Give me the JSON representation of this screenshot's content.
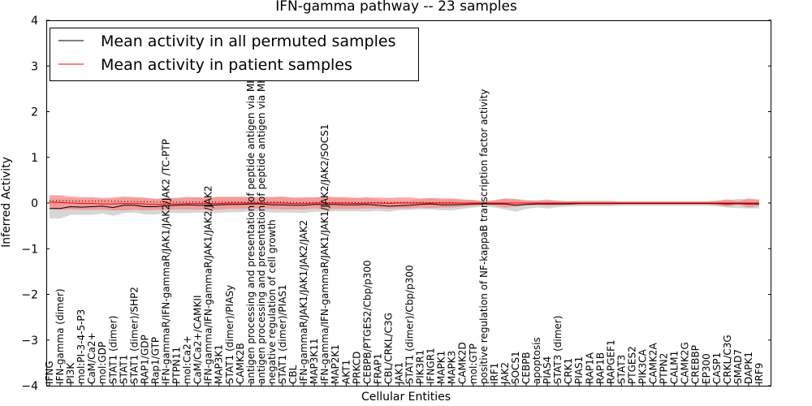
{
  "chart_data": {
    "type": "line",
    "title": "IFN-gamma pathway -- 23 samples",
    "xlabel": "Cellular Entities",
    "ylabel": "Inferred Activity",
    "ylim": [
      -4,
      4
    ],
    "yticks": [
      -4,
      -3,
      -2,
      -1,
      0,
      1,
      2,
      3,
      4
    ],
    "grid": false,
    "legend_position": "top-left",
    "categories": [
      "IFNG",
      "IFN-gamma (dimer)",
      "PI3K",
      "mol:PI-3-4-5-P3",
      "CaM/Ca2+",
      "mol:GDP",
      "STAT1 (dimer)",
      "STAT1",
      "STAT1 (dimer)/SHP2",
      "RAP1/GDP",
      "Rap1/GTP",
      "IFN-gammaR/IFN-gammaR/JAK1/JAK2/JAK2 /TC-PTP",
      "PTPN11",
      "mol:Ca2+",
      "CaM/Ca2+/CAMKII",
      "IFN-gamma/IFN-gammaR/JAK1/JAK2/JAK2",
      "MAP3K1",
      "STAT1 (dimer)/PIASy",
      "CAMK2B",
      "antigen processing and presentation of peptide antigen via MHC class I",
      "antigen processing and presentation of peptide antigen via MHC class II",
      "negative regulation of cell growth",
      "STAT1 (dimer)/PIAS1",
      "CBL",
      "IFN-gammaR/JAK1/JAK1/JAK2/JAK2",
      "MAP3K11",
      "IFN-gamma/IFN-gammaR/JAK1/JAK1/JAK2/JAK2/SOCS1",
      "MAP2K1",
      "AKT1",
      "PRKCD",
      "CEBPB/PTGES2/Cbp/p300",
      "FRAP1",
      "CBL/CRKL/C3G",
      "JAK1",
      "STAT1 (dimer)/Cbp/p300",
      "PIK3R1",
      "IFNGR1",
      "MAPK1",
      "MAPK3",
      "CAMK2D",
      "mol:GTP",
      "positive regulation of NF-kappaB transcription factor activity",
      "IRF1",
      "JAK2",
      "SOCS1",
      "CEBPB",
      "apoptosis",
      "PIAS4",
      "STAT3 (dimer)",
      "CRK1",
      "PIAS1",
      "RAP1A",
      "RAP1B",
      "RAPGEF1",
      "STAT3",
      "PTGES2",
      "PIK3CA",
      "CAMK2A",
      "PTPN2",
      "CALM1",
      "CAMK2G",
      "CREBBP",
      "EP300",
      "CASP1",
      "CRKL/C3G",
      "SMAD7",
      "DAPK1",
      "IRF9"
    ],
    "series": [
      {
        "name": "Mean activity in all permuted samples",
        "color": "#000000",
        "values": [
          -0.12,
          -0.12,
          -0.08,
          -0.09,
          -0.08,
          -0.07,
          -0.1,
          -0.05,
          -0.05,
          -0.08,
          -0.08,
          -0.06,
          -0.05,
          -0.04,
          -0.05,
          -0.05,
          -0.04,
          -0.03,
          -0.03,
          -0.02,
          -0.02,
          -0.04,
          -0.04,
          -0.05,
          -0.05,
          -0.03,
          -0.03,
          -0.03,
          -0.04,
          -0.04,
          -0.03,
          -0.05,
          -0.07,
          -0.06,
          -0.05,
          -0.03,
          -0.02,
          -0.04,
          -0.04,
          -0.03,
          -0.02,
          -0.02,
          -0.02,
          -0.02,
          -0.05,
          -0.03,
          -0.02,
          -0.02,
          -0.02,
          -0.02,
          -0.01,
          -0.01,
          -0.01,
          -0.01,
          -0.01,
          -0.01,
          -0.01,
          -0.01,
          -0.01,
          -0.01,
          -0.01,
          -0.01,
          -0.01,
          -0.01,
          -0.02,
          -0.01,
          -0.02,
          -0.02
        ],
        "band": [
          0.22,
          0.22,
          0.18,
          0.17,
          0.18,
          0.16,
          0.18,
          0.17,
          0.16,
          0.17,
          0.17,
          0.16,
          0.17,
          0.18,
          0.16,
          0.17,
          0.18,
          0.17,
          0.17,
          0.16,
          0.16,
          0.17,
          0.17,
          0.16,
          0.17,
          0.16,
          0.16,
          0.15,
          0.14,
          0.14,
          0.16,
          0.12,
          0.12,
          0.1,
          0.1,
          0.11,
          0.12,
          0.12,
          0.12,
          0.1,
          0.08,
          0.06,
          0.08,
          0.12,
          0.14,
          0.1,
          0.08,
          0.1,
          0.07,
          0.06,
          0.06,
          0.06,
          0.06,
          0.06,
          0.05,
          0.05,
          0.05,
          0.05,
          0.05,
          0.05,
          0.05,
          0.05,
          0.05,
          0.06,
          0.08,
          0.1,
          0.1,
          0.1
        ]
      },
      {
        "name": "Mean activity in patient samples",
        "color": "#ff0000",
        "values": [
          0.02,
          0.01,
          0.0,
          -0.01,
          -0.01,
          -0.02,
          -0.02,
          -0.01,
          -0.01,
          -0.02,
          -0.03,
          -0.02,
          -0.02,
          -0.01,
          -0.01,
          -0.01,
          -0.01,
          0.0,
          0.0,
          0.0,
          0.0,
          0.0,
          0.0,
          -0.01,
          -0.01,
          0.0,
          0.0,
          0.0,
          0.0,
          -0.01,
          0.0,
          0.0,
          -0.01,
          0.0,
          0.0,
          0.0,
          0.0,
          0.0,
          0.0,
          0.0,
          0.0,
          0.0,
          0.0,
          0.0,
          0.0,
          0.0,
          0.0,
          0.0,
          0.0,
          0.0,
          0.0,
          0.0,
          0.0,
          0.0,
          0.0,
          0.0,
          0.0,
          0.0,
          0.0,
          0.0,
          0.0,
          0.0,
          0.0,
          0.0,
          0.0,
          0.0,
          0.0,
          0.0
        ],
        "band": [
          0.15,
          0.16,
          0.14,
          0.14,
          0.14,
          0.13,
          0.14,
          0.15,
          0.14,
          0.14,
          0.12,
          0.13,
          0.12,
          0.13,
          0.14,
          0.13,
          0.14,
          0.13,
          0.13,
          0.12,
          0.12,
          0.13,
          0.14,
          0.13,
          0.13,
          0.12,
          0.14,
          0.13,
          0.13,
          0.12,
          0.12,
          0.12,
          0.12,
          0.12,
          0.12,
          0.1,
          0.11,
          0.1,
          0.1,
          0.08,
          0.07,
          0.04,
          0.06,
          0.1,
          0.08,
          0.05,
          0.05,
          0.06,
          0.05,
          0.04,
          0.04,
          0.04,
          0.04,
          0.04,
          0.03,
          0.03,
          0.03,
          0.03,
          0.03,
          0.03,
          0.03,
          0.03,
          0.03,
          0.05,
          0.08,
          0.04,
          0.1,
          0.07
        ]
      }
    ],
    "reference_line": {
      "style": "dotted",
      "values": [
        0.05,
        0.05,
        0.04,
        0.04,
        0.04,
        0.04,
        0.04,
        0.03,
        0.03,
        0.03,
        0.02,
        0.02,
        0.02,
        0.02,
        0.02,
        0.02,
        0.02,
        0.02,
        0.02,
        0.02,
        0.02,
        0.02,
        0.02,
        0.01,
        0.01,
        0.01,
        0.01,
        0.01,
        0.01,
        0.01,
        0.01,
        0.01,
        0.01,
        0.01,
        0.01,
        0.01,
        0.01,
        0.01,
        0.01,
        0.0,
        0.0,
        0.0,
        0.0,
        0.0,
        0.0,
        0.0,
        0.0,
        0.0,
        0.0,
        0.0,
        0.0,
        0.0,
        0.0,
        0.0,
        0.0,
        0.0,
        0.0,
        0.0,
        0.0,
        0.0,
        0.0,
        0.0,
        0.0,
        0.0,
        0.0,
        0.0,
        0.0,
        0.0
      ]
    },
    "colors": {
      "permuted_band": "#c8c8c8",
      "patient_band": "#ff8080",
      "axis": "#000000"
    }
  }
}
